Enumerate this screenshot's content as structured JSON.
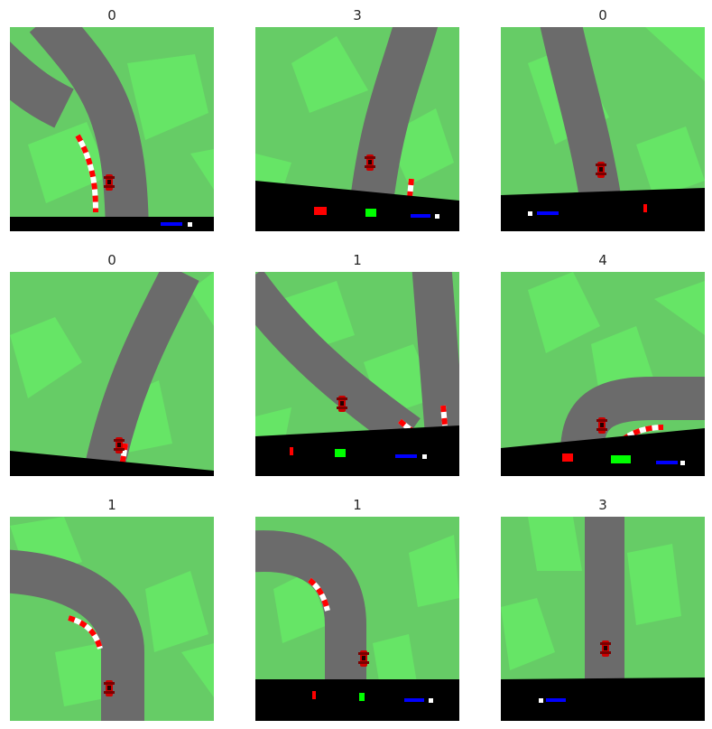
{
  "figure": {
    "panels": [
      {
        "title": "0",
        "scene": 0
      },
      {
        "title": "3",
        "scene": 1
      },
      {
        "title": "0",
        "scene": 2
      },
      {
        "title": "0",
        "scene": 3
      },
      {
        "title": "1",
        "scene": 4
      },
      {
        "title": "4",
        "scene": 5
      },
      {
        "title": "1",
        "scene": 6
      },
      {
        "title": "1",
        "scene": 7
      },
      {
        "title": "3",
        "scene": 8
      }
    ]
  },
  "colors": {
    "grass": "#66cc66",
    "grass_tile": "#66e566",
    "road": "#6b6b6b",
    "hud": "#000000",
    "car": "#cc0000",
    "kerb_red": "#ff0000",
    "kerb_white": "#ffffff",
    "speed_bar": "#0000ff",
    "gyro_bar": "#00ff00",
    "steer_bar": "#ff0000"
  },
  "icons": {
    "car": "red-race-car-icon"
  }
}
